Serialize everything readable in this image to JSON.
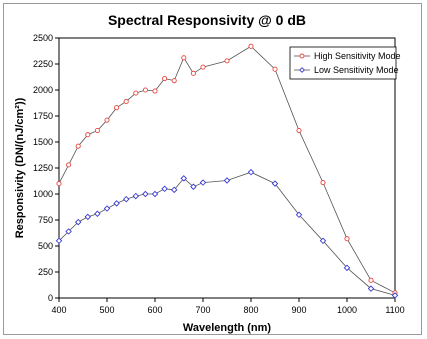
{
  "chart_data": {
    "type": "line",
    "title": "Spectral Responsivity @ 0 dB",
    "xlabel": "Wavelength (nm)",
    "ylabel": "Responsivity (DN/(nJ/cm²))",
    "xlim": [
      400,
      1100
    ],
    "ylim": [
      0,
      2500
    ],
    "x_ticks": [
      400,
      500,
      600,
      700,
      800,
      900,
      1000,
      1100
    ],
    "y_ticks": [
      0,
      250,
      500,
      750,
      1000,
      1250,
      1500,
      1750,
      2000,
      2250,
      2500
    ],
    "grid": false,
    "legend_position": "top-right",
    "series": [
      {
        "name": "High Sensitivity Mode",
        "color": "#e8453c",
        "marker": "circle",
        "x": [
          400,
          420,
          440,
          460,
          480,
          500,
          520,
          540,
          560,
          580,
          600,
          620,
          640,
          660,
          680,
          700,
          750,
          800,
          850,
          900,
          950,
          1000,
          1050,
          1100
        ],
        "y": [
          1100,
          1280,
          1460,
          1570,
          1610,
          1710,
          1830,
          1890,
          1970,
          2000,
          1990,
          2110,
          2090,
          2310,
          2160,
          2220,
          2280,
          2420,
          2200,
          1610,
          1110,
          570,
          170,
          50
        ]
      },
      {
        "name": "Low Sensitivity Mode",
        "color": "#3a3ad6",
        "marker": "diamond",
        "x": [
          400,
          420,
          440,
          460,
          480,
          500,
          520,
          540,
          560,
          580,
          600,
          620,
          640,
          660,
          680,
          700,
          750,
          800,
          850,
          900,
          950,
          1000,
          1050,
          1100
        ],
        "y": [
          550,
          640,
          730,
          780,
          810,
          860,
          910,
          950,
          980,
          1000,
          1000,
          1050,
          1040,
          1150,
          1070,
          1110,
          1130,
          1210,
          1100,
          800,
          550,
          290,
          90,
          25
        ]
      }
    ]
  }
}
